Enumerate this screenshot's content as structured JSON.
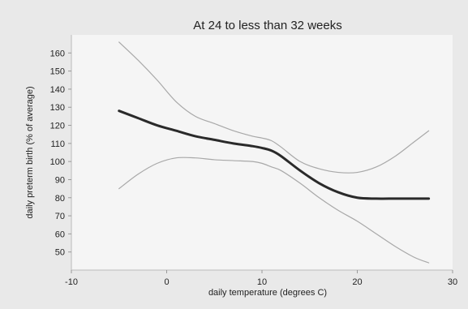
{
  "chart_data": {
    "type": "line",
    "title": "At 24 to less than 32 weeks",
    "xlabel": "daily temperature (degrees C)",
    "ylabel": "daily preterm birth (% of average)",
    "xlim": [
      -10,
      30
    ],
    "ylim": [
      40,
      170
    ],
    "xticks": [
      -10,
      0,
      10,
      20,
      30
    ],
    "yticks": [
      50,
      60,
      70,
      80,
      90,
      100,
      110,
      120,
      130,
      140,
      150,
      160
    ],
    "grid": false,
    "legend": "none",
    "series": [
      {
        "role": "estimate",
        "color": "#2a2a2a",
        "x": [
          -5,
          -3,
          -1,
          1,
          3,
          5,
          7,
          9,
          10,
          11,
          12,
          14,
          16,
          18,
          20,
          22,
          24,
          26,
          27.5
        ],
        "y": [
          128,
          124,
          120,
          117,
          114,
          112,
          110,
          108.5,
          107.5,
          106,
          103,
          95,
          88,
          83,
          80,
          79.5,
          79.5,
          79.5,
          79.5
        ]
      },
      {
        "role": "upper-ci",
        "color": "#a8a8a8",
        "x": [
          -5,
          -3,
          -1,
          1,
          3,
          5,
          7,
          9,
          10,
          11,
          12,
          14,
          16,
          18,
          20,
          22,
          24,
          26,
          27.5
        ],
        "y": [
          166,
          156,
          145,
          133,
          125,
          121,
          117,
          114,
          113,
          111.5,
          108,
          100,
          96,
          94,
          94,
          97,
          103,
          111,
          117
        ]
      },
      {
        "role": "lower-ci",
        "color": "#a8a8a8",
        "x": [
          -5,
          -3,
          -1,
          1,
          3,
          5,
          7,
          9,
          10,
          11,
          12,
          14,
          16,
          18,
          20,
          22,
          24,
          26,
          27.5
        ],
        "y": [
          85,
          93,
          99,
          102,
          102,
          101,
          100.5,
          100,
          99,
          97,
          95,
          88,
          80,
          73,
          67,
          60,
          53,
          47,
          44
        ]
      }
    ]
  }
}
